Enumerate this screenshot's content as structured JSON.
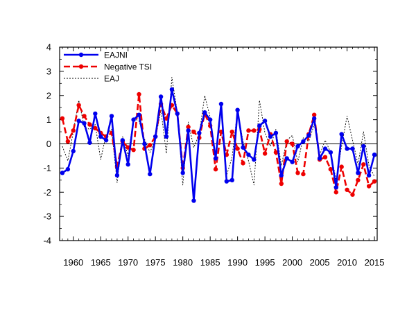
{
  "chart_data": {
    "type": "line",
    "title": "",
    "xlabel": "",
    "ylabel": "",
    "xlim": [
      1957.5,
      2015.5
    ],
    "ylim": [
      -4,
      4
    ],
    "x_ticks": [
      1960,
      1965,
      1970,
      1975,
      1980,
      1985,
      1990,
      1995,
      2000,
      2005,
      2010,
      2015
    ],
    "y_ticks": [
      -4,
      -3,
      -2,
      -1,
      0,
      1,
      2,
      3,
      4
    ],
    "grid": false,
    "zero_line": true,
    "legend_position": "top-left",
    "x": [
      1958,
      1959,
      1960,
      1961,
      1962,
      1963,
      1964,
      1965,
      1966,
      1967,
      1968,
      1969,
      1970,
      1971,
      1972,
      1973,
      1974,
      1975,
      1976,
      1977,
      1978,
      1979,
      1980,
      1981,
      1982,
      1983,
      1984,
      1985,
      1986,
      1987,
      1988,
      1989,
      1990,
      1991,
      1992,
      1993,
      1994,
      1995,
      1996,
      1997,
      1998,
      1999,
      2000,
      2001,
      2002,
      2003,
      2004,
      2005,
      2006,
      2007,
      2008,
      2009,
      2010,
      2011,
      2012,
      2013,
      2014,
      2015
    ],
    "series": [
      {
        "name": "EAJNI",
        "color": "#0000ee",
        "style": "solid",
        "marker": "circle",
        "values": [
          -1.2,
          -1.05,
          -0.3,
          0.95,
          0.85,
          0.05,
          1.25,
          0.3,
          0.15,
          1.15,
          -1.3,
          0.15,
          -0.85,
          1.0,
          1.2,
          0.0,
          -1.25,
          0.3,
          1.95,
          0.3,
          2.25,
          1.25,
          -1.2,
          0.55,
          -2.35,
          0.45,
          1.3,
          1.0,
          -0.6,
          1.65,
          -1.55,
          -1.5,
          1.4,
          -0.15,
          -0.45,
          -0.65,
          0.75,
          0.95,
          0.3,
          0.45,
          -1.3,
          -0.6,
          -0.75,
          -0.1,
          0.1,
          0.35,
          1.05,
          -0.6,
          -0.2,
          -0.35,
          -1.8,
          0.4,
          -0.2,
          -0.2,
          -1.2,
          -0.1,
          -1.3,
          -0.45
        ]
      },
      {
        "name": "Negative TSI",
        "color": "#ee0000",
        "style": "dashed",
        "marker": "circle",
        "values": [
          1.05,
          0.1,
          0.55,
          1.6,
          1.15,
          0.8,
          0.65,
          0.45,
          0.3,
          0.45,
          -0.95,
          0.1,
          -0.15,
          -0.25,
          2.05,
          -0.2,
          -0.05,
          0.3,
          1.65,
          1.05,
          1.6,
          1.25,
          -1.0,
          0.7,
          0.5,
          0.25,
          1.25,
          0.75,
          -1.05,
          0.5,
          -0.45,
          0.5,
          -0.2,
          -0.8,
          0.55,
          0.55,
          0.6,
          -0.4,
          0.4,
          -0.35,
          -1.65,
          0.1,
          0.0,
          -1.2,
          -1.25,
          0.4,
          1.2,
          -0.65,
          -0.55,
          -1.05,
          -2.0,
          -0.95,
          -1.9,
          -2.1,
          -1.5,
          -0.85,
          -1.75,
          -1.55
        ]
      },
      {
        "name": "EAJ",
        "color": "#000000",
        "style": "dotted",
        "marker": "none",
        "values": [
          -0.1,
          -0.7,
          0.5,
          1.8,
          0.7,
          0.6,
          0.8,
          -0.65,
          0.4,
          0.6,
          -1.6,
          0.3,
          -0.5,
          1.05,
          0.95,
          0.2,
          -0.35,
          0.2,
          1.4,
          -0.4,
          2.75,
          1.3,
          -1.7,
          0.9,
          -0.15,
          0.4,
          2.0,
          1.1,
          -0.7,
          1.45,
          -1.3,
          -0.55,
          1.4,
          0.1,
          -0.7,
          -1.7,
          1.8,
          0.45,
          -0.1,
          0.6,
          -0.9,
          0.15,
          0.35,
          -0.75,
          0.25,
          0.1,
          0.8,
          -0.45,
          0.15,
          -0.35,
          -1.5,
          -0.1,
          1.15,
          0.15,
          -0.85,
          0.5,
          -0.9,
          -1.35
        ]
      }
    ]
  }
}
